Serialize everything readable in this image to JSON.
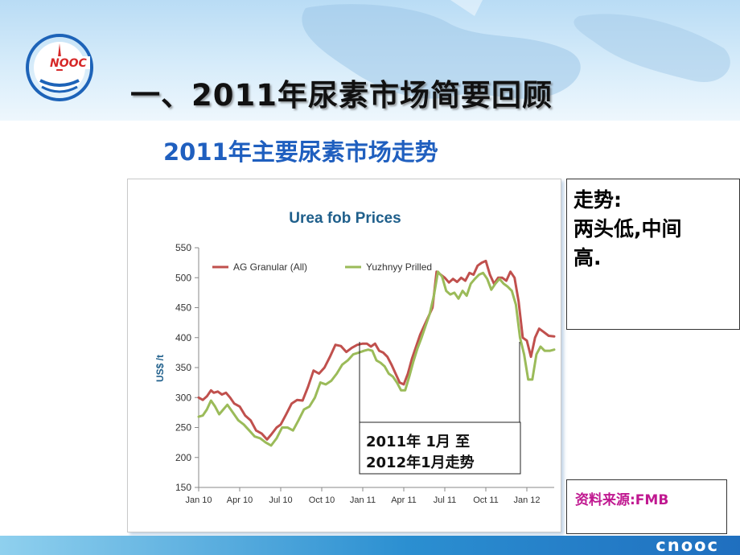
{
  "slide": {
    "title": "一、2011年尿素市场简要回顾",
    "subtitle": "2011年主要尿素市场走势",
    "brand_text": "NOOC",
    "footer_brand": "cnooc"
  },
  "trend_box": {
    "lines": [
      "走势:",
      "两头低,中间",
      "高."
    ]
  },
  "source_box": {
    "text": "资料来源:FMB"
  },
  "annotation": {
    "line1": "2011年 1月 至",
    "line2": "2012年1月走势"
  },
  "colors": {
    "ag_series": "#c0504d",
    "yuzhnyy_series": "#9bbb59",
    "title_blue": "#1f5fbf",
    "chart_title": "#1f5f8b",
    "source_magenta": "#c01890"
  },
  "chart_data": {
    "type": "line",
    "title": "Urea fob Prices",
    "ylabel": "US$ /t",
    "xlabel": "",
    "ylim": [
      150,
      550
    ],
    "yticks": [
      150,
      200,
      250,
      300,
      350,
      400,
      450,
      500,
      550
    ],
    "xlim": [
      0,
      26
    ],
    "xticks": [
      {
        "x": 0,
        "label": "Jan 10"
      },
      {
        "x": 3,
        "label": "Apr 10"
      },
      {
        "x": 6,
        "label": "Jul 10"
      },
      {
        "x": 9,
        "label": "Oct 10"
      },
      {
        "x": 12,
        "label": "Jan 11"
      },
      {
        "x": 15,
        "label": "Apr 11"
      },
      {
        "x": 18,
        "label": "Jul 11"
      },
      {
        "x": 21,
        "label": "Oct 11"
      },
      {
        "x": 24,
        "label": "Jan 12"
      }
    ],
    "legend_position": "top",
    "series": [
      {
        "name": "AG Granular (All)",
        "color": "#c0504d",
        "x": [
          0,
          0.3,
          0.6,
          0.9,
          1.1,
          1.4,
          1.7,
          2.0,
          2.3,
          2.6,
          3.0,
          3.4,
          3.8,
          4.2,
          4.6,
          5.0,
          5.3,
          5.7,
          6.0,
          6.4,
          6.8,
          7.2,
          7.6,
          8.0,
          8.4,
          8.8,
          9.2,
          9.6,
          10.0,
          10.4,
          10.8,
          11.2,
          11.6,
          12.0,
          12.3,
          12.6,
          12.9,
          13.2,
          13.5,
          13.8,
          14.1,
          14.4,
          14.7,
          15.0,
          15.3,
          15.6,
          15.9,
          16.2,
          16.5,
          16.8,
          17.1,
          17.4,
          17.7,
          18.0,
          18.3,
          18.6,
          18.9,
          19.2,
          19.5,
          19.8,
          20.1,
          20.4,
          20.7,
          21.0,
          21.3,
          21.6,
          21.9,
          22.2,
          22.5,
          22.8,
          23.1,
          23.4,
          23.7,
          24.0,
          24.3,
          24.6,
          24.9,
          25.2,
          25.6,
          26.0
        ],
        "values": [
          300,
          296,
          302,
          312,
          308,
          310,
          305,
          308,
          300,
          290,
          285,
          270,
          262,
          245,
          240,
          230,
          238,
          250,
          255,
          272,
          290,
          296,
          295,
          318,
          345,
          340,
          350,
          368,
          388,
          386,
          376,
          383,
          388,
          390,
          390,
          385,
          390,
          378,
          375,
          368,
          355,
          340,
          325,
          322,
          340,
          365,
          385,
          405,
          420,
          435,
          450,
          510,
          505,
          500,
          492,
          498,
          493,
          500,
          495,
          508,
          505,
          520,
          525,
          528,
          505,
          490,
          500,
          500,
          495,
          510,
          500,
          460,
          400,
          395,
          368,
          400,
          415,
          410,
          403,
          402
        ]
      },
      {
        "name": "Yuzhnyy Prilled",
        "color": "#9bbb59",
        "x": [
          0,
          0.3,
          0.6,
          0.9,
          1.2,
          1.5,
          1.8,
          2.1,
          2.5,
          2.9,
          3.3,
          3.7,
          4.1,
          4.5,
          4.9,
          5.3,
          5.7,
          6.1,
          6.5,
          6.9,
          7.3,
          7.7,
          8.1,
          8.5,
          8.9,
          9.3,
          9.7,
          10.1,
          10.5,
          10.9,
          11.3,
          11.7,
          12.1,
          12.4,
          12.7,
          13.0,
          13.3,
          13.6,
          13.9,
          14.2,
          14.5,
          14.8,
          15.1,
          15.4,
          15.7,
          16.0,
          16.3,
          16.6,
          16.9,
          17.2,
          17.5,
          17.8,
          18.1,
          18.4,
          18.7,
          19.0,
          19.3,
          19.6,
          19.9,
          20.2,
          20.5,
          20.8,
          21.1,
          21.4,
          21.7,
          22.0,
          22.3,
          22.6,
          22.9,
          23.2,
          23.5,
          23.8,
          24.1,
          24.4,
          24.7,
          25.0,
          25.3,
          25.7,
          26.0
        ],
        "values": [
          268,
          270,
          280,
          295,
          285,
          272,
          280,
          288,
          275,
          262,
          255,
          245,
          235,
          232,
          225,
          220,
          232,
          250,
          250,
          245,
          262,
          280,
          285,
          300,
          325,
          322,
          328,
          340,
          355,
          362,
          372,
          375,
          378,
          380,
          378,
          362,
          358,
          352,
          340,
          335,
          325,
          312,
          312,
          335,
          360,
          382,
          400,
          420,
          440,
          470,
          510,
          502,
          478,
          472,
          475,
          465,
          478,
          470,
          490,
          498,
          505,
          508,
          498,
          480,
          490,
          498,
          490,
          485,
          478,
          455,
          400,
          372,
          330,
          330,
          372,
          385,
          378,
          378,
          380
        ]
      }
    ]
  }
}
